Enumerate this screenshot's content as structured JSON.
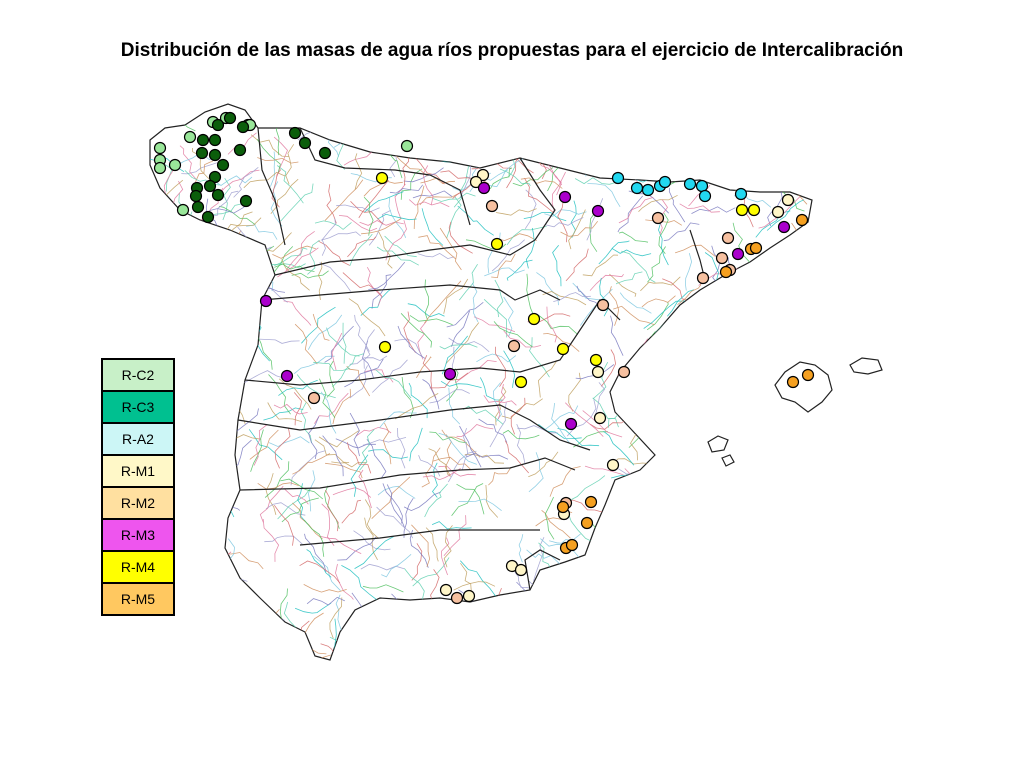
{
  "title": "Distribución de las masas de agua ríos propuestas para el ejercicio de Intercalibración",
  "legend": {
    "items": [
      {
        "label": "R-C2",
        "color": "#c8f0c8"
      },
      {
        "label": "R-C3",
        "color": "#00c090"
      },
      {
        "label": "R-A2",
        "color": "#ccf6f6"
      },
      {
        "label": "R-M1",
        "color": "#fff8c8"
      },
      {
        "label": "R-M2",
        "color": "#ffe0a0"
      },
      {
        "label": "R-M3",
        "color": "#ee55ee"
      },
      {
        "label": "R-M4",
        "color": "#ffff00"
      },
      {
        "label": "R-M5",
        "color": "#ffc860"
      }
    ]
  },
  "marker_colors": {
    "light_green": "#99e699",
    "dark_green": "#0b5e0b",
    "cyan": "#22d8f0",
    "cream": "#fff6c8",
    "salmon": "#f6c0a0",
    "purple": "#aa00cc",
    "yellow": "#ffff00",
    "orange": "#f5a020"
  },
  "river_colors": [
    "#7a7ac0",
    "#d46a6a",
    "#20c0c0",
    "#50c060",
    "#d09060",
    "#80c8e0",
    "#c0a060",
    "#e07aa0",
    "#60d0b0",
    "#a0a0d0"
  ]
}
